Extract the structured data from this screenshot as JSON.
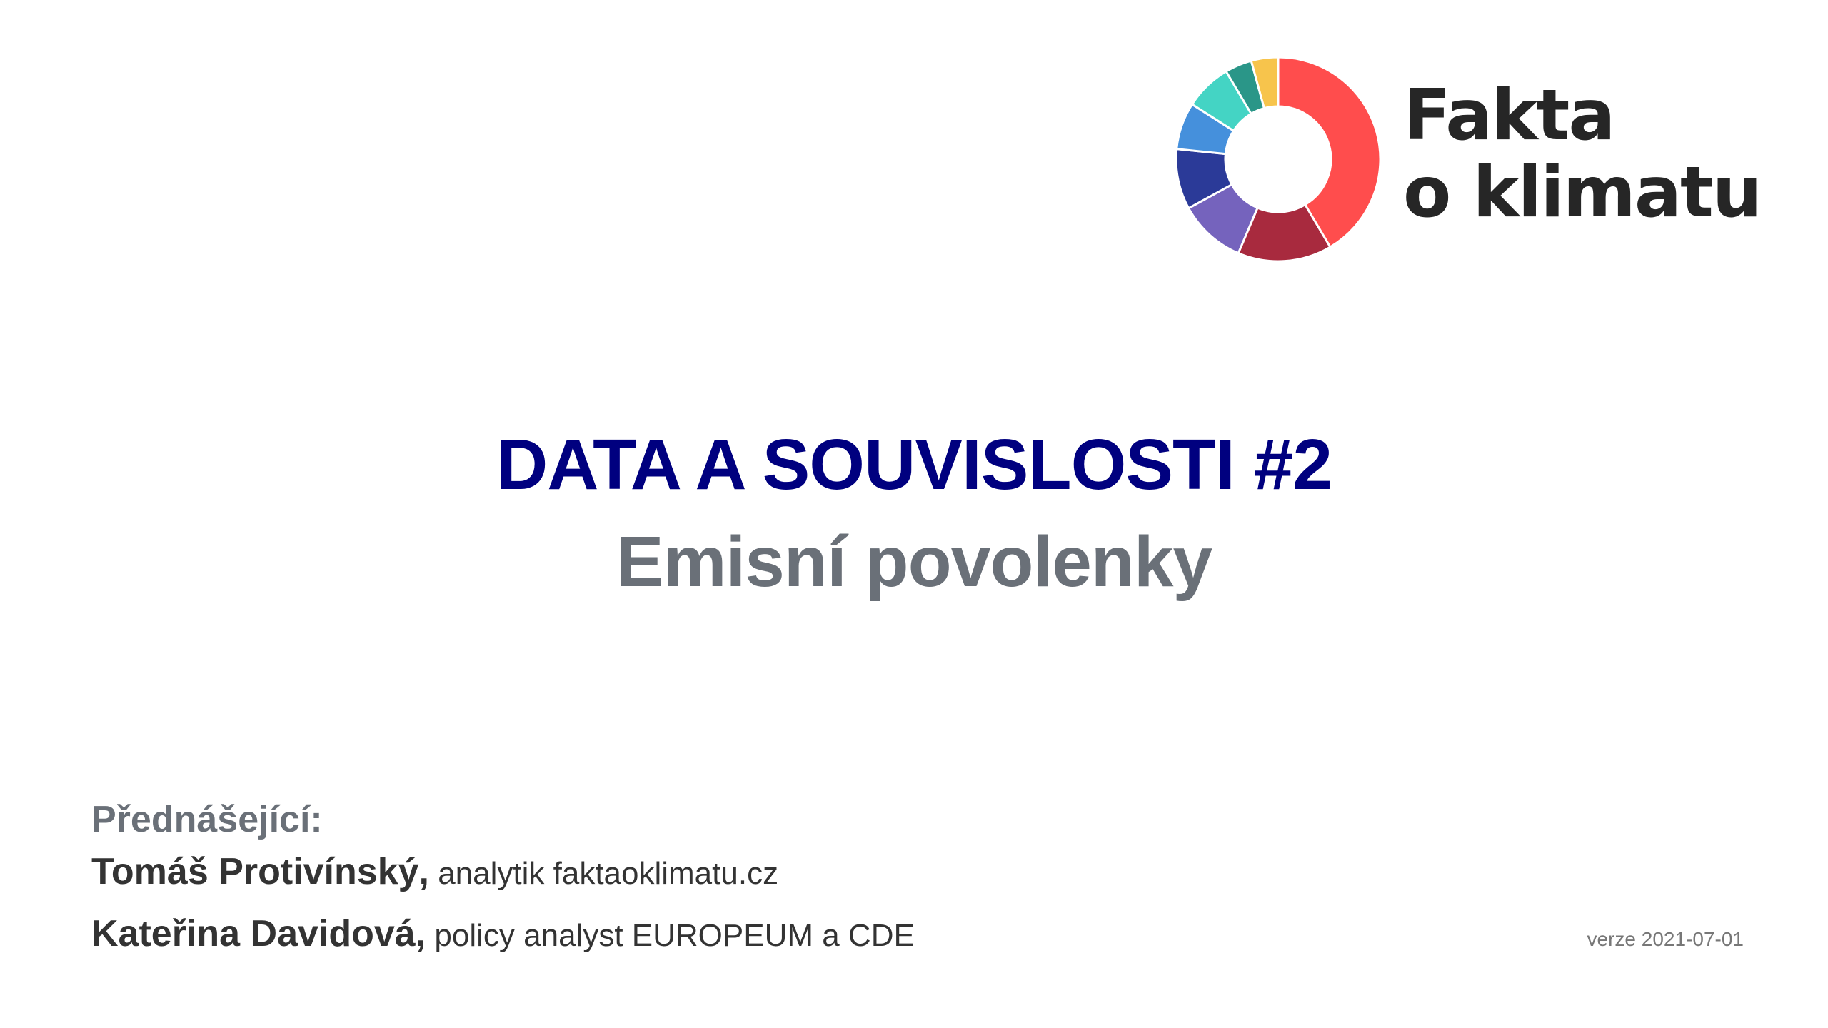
{
  "logo": {
    "line1": "Fakta",
    "line2": "o klimatu",
    "donut_icon": "donut-chart-logo-icon",
    "segments": [
      {
        "color": "#ff4d4d",
        "share": 0.39
      },
      {
        "color": "#a82a3e",
        "share": 0.14
      },
      {
        "color": "#7563bd",
        "share": 0.1
      },
      {
        "color": "#2b3a98",
        "share": 0.09
      },
      {
        "color": "#4590dc",
        "share": 0.07
      },
      {
        "color": "#44d4c4",
        "share": 0.07
      },
      {
        "color": "#2a9688",
        "share": 0.04
      },
      {
        "color": "#f7c44c",
        "share": 0.04
      }
    ]
  },
  "title": {
    "main": "DATA A SOUVISLOSTI #2",
    "sub": "Emisní povolenky"
  },
  "presenters": {
    "label": "Přednášející:",
    "people": [
      {
        "name": "Tomáš Protivínský,",
        "role": " analytik faktaoklimatu.cz"
      },
      {
        "name": "Kateřina Davidová,",
        "role": " policy analyst EUROPEUM a CDE"
      }
    ]
  },
  "version": "verze 2021-07-01",
  "colors": {
    "title_main": "#00007f",
    "title_sub": "#6a7078",
    "text_dark": "#333333"
  }
}
